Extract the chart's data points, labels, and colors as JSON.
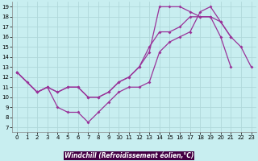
{
  "bg_color": "#c8eef0",
  "grid_color": "#b0d8da",
  "line_color": "#993399",
  "xlabel": "Windchill (Refroidissement éolien,°C)",
  "xlabel_bg": "#440044",
  "xlabel_fg": "#ffffff",
  "xlim_min": -0.5,
  "xlim_max": 23.5,
  "ylim_min": 6.5,
  "ylim_max": 19.5,
  "xticks": [
    0,
    1,
    2,
    3,
    4,
    5,
    6,
    7,
    8,
    9,
    10,
    11,
    12,
    13,
    14,
    15,
    16,
    17,
    18,
    19,
    20,
    21,
    22,
    23
  ],
  "yticks": [
    7,
    8,
    9,
    10,
    11,
    12,
    13,
    14,
    15,
    16,
    17,
    18,
    19
  ],
  "line1_x": [
    0,
    1,
    2,
    3,
    4,
    5,
    6,
    7,
    8,
    9,
    10,
    11,
    12,
    13,
    14,
    15,
    16,
    17,
    18,
    19,
    20,
    21,
    22,
    23
  ],
  "line1_y": [
    12.5,
    11.5,
    10.5,
    11.0,
    9.0,
    8.5,
    8.5,
    7.5,
    8.5,
    9.5,
    10.5,
    11.0,
    11.0,
    11.5,
    14.5,
    15.5,
    16.0,
    16.5,
    18.5,
    19.0,
    17.5,
    16.0,
    15.0,
    13.0
  ],
  "line2_x": [
    0,
    2,
    3,
    4,
    5,
    6,
    7,
    8,
    9,
    10,
    11,
    12,
    13,
    14,
    15,
    16,
    17,
    18,
    19,
    20,
    21
  ],
  "line2_y": [
    12.5,
    10.5,
    11.0,
    10.5,
    11.0,
    11.0,
    10.0,
    10.0,
    10.5,
    11.5,
    12.0,
    13.0,
    14.5,
    19.0,
    19.0,
    19.0,
    18.5,
    18.0,
    18.0,
    17.5,
    16.0
  ],
  "line3_x": [
    0,
    2,
    3,
    4,
    5,
    6,
    7,
    8,
    9,
    10,
    11,
    12,
    13,
    14,
    15,
    16,
    17,
    18,
    19,
    20,
    21
  ],
  "line3_y": [
    12.5,
    10.5,
    11.0,
    10.5,
    11.0,
    11.0,
    10.0,
    10.0,
    10.5,
    11.5,
    12.0,
    13.0,
    15.0,
    16.5,
    16.5,
    17.0,
    18.0,
    18.0,
    18.0,
    16.0,
    13.0
  ],
  "markersize": 2.0,
  "linewidth": 0.9,
  "tick_fontsize": 5.0,
  "xlabel_fontsize": 5.5
}
